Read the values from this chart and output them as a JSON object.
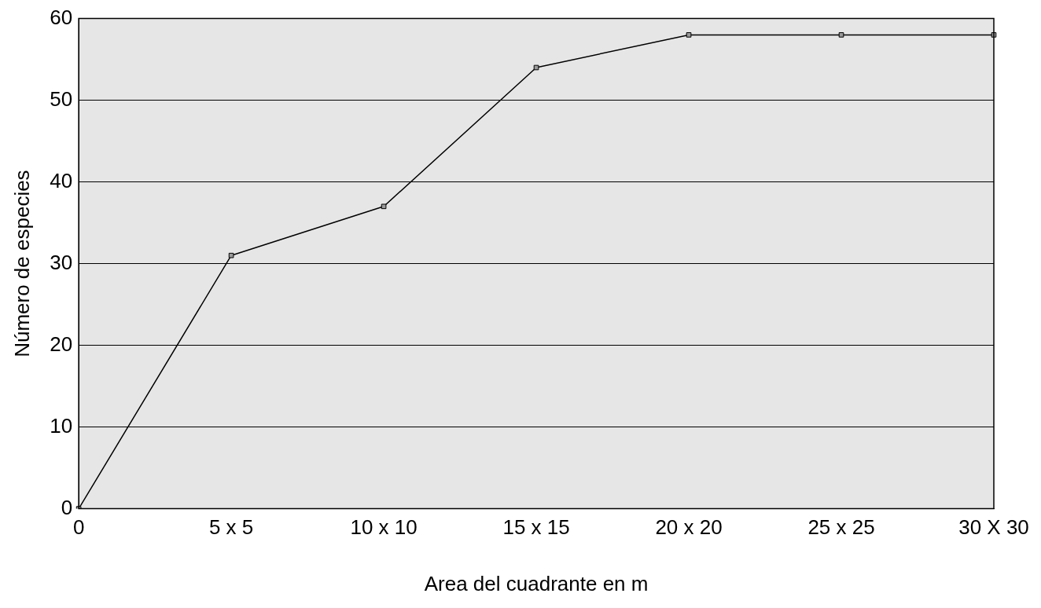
{
  "chart_data": {
    "type": "line",
    "xlabel": "Area del cuadrante en m",
    "ylabel": "Número de especies",
    "categories": [
      "0",
      "5 x 5",
      "10 x 10",
      "15 x 15",
      "20 x 20",
      "25 x 25",
      "30 X 30"
    ],
    "series": [
      {
        "color": "#000000",
        "values": [
          0,
          31,
          37,
          54,
          58,
          58,
          58
        ]
      }
    ],
    "ylim": [
      0,
      60
    ],
    "yticks": [
      0,
      10,
      20,
      30,
      40,
      50,
      60
    ],
    "grid": "y",
    "legend": false,
    "marker": "square",
    "line_style": "solid"
  }
}
